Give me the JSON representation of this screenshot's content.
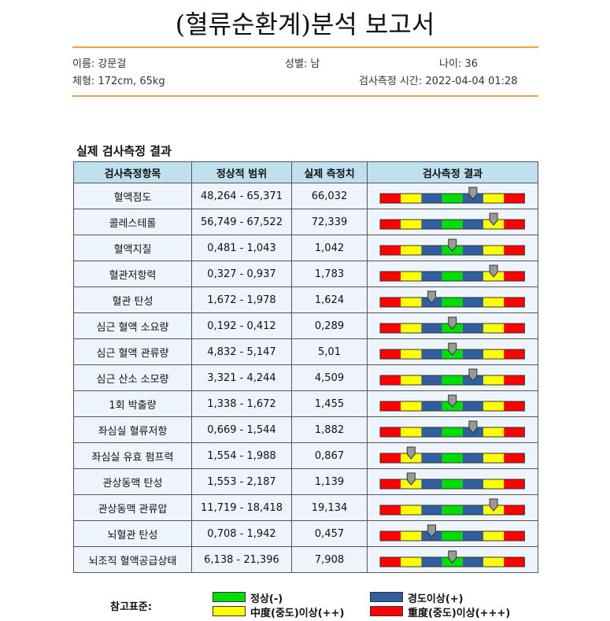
{
  "header": {
    "title": "(혈류순환계)분석 보고서"
  },
  "info": {
    "name": "이름: 강문걸",
    "sex": "성별: 남",
    "age": "나이: 36",
    "body": "체형: 172cm, 65kg",
    "time": "검사측정 시간: 2022-04-04 01:28"
  },
  "table": {
    "title": "실제 검사측정 결과",
    "columns": [
      "검사측정항목",
      "정상적 범위",
      "실제 측정치",
      "검사측정 결과"
    ],
    "rows": [
      {
        "item": "혈액점도",
        "range": "48,264 - 65,371",
        "value": "66,032",
        "level": 4
      },
      {
        "item": "콜레스테롤",
        "range": "56,749 - 67,522",
        "value": "72,339",
        "level": 5
      },
      {
        "item": "혈액지질",
        "range": "0,481 - 1,043",
        "value": "1,042",
        "level": 3
      },
      {
        "item": "혈관저항력",
        "range": "0,327 - 0,937",
        "value": "1,783",
        "level": 5
      },
      {
        "item": "혈관 탄성",
        "range": "1,672 - 1,978",
        "value": "1,624",
        "level": 2
      },
      {
        "item": "심근 혈액 소요량",
        "range": "0,192 - 0,412",
        "value": "0,289",
        "level": 3
      },
      {
        "item": "심근 혈액 관류량",
        "range": "4,832 - 5,147",
        "value": "5,01",
        "level": 3
      },
      {
        "item": "심근 산소 소모량",
        "range": "3,321 - 4,244",
        "value": "4,509",
        "level": 4
      },
      {
        "item": "1회 박출량",
        "range": "1,338 - 1,672",
        "value": "1,455",
        "level": 3
      },
      {
        "item": "좌심실 혈류저항",
        "range": "0,669 - 1,544",
        "value": "1,882",
        "level": 4
      },
      {
        "item": "좌심실 유효 펌프력",
        "range": "1,554 - 1,988",
        "value": "0,867",
        "level": 1
      },
      {
        "item": "관상동맥 탄성",
        "range": "1,553 - 2,187",
        "value": "1,139",
        "level": 1
      },
      {
        "item": "관상동맥 관류압",
        "range": "11,719 - 18,418",
        "value": "19,134",
        "level": 5
      },
      {
        "item": "뇌혈관 탄성",
        "range": "0,708 - 1,942",
        "value": "0,457",
        "level": 2
      },
      {
        "item": "뇌조직 혈액공급상태",
        "range": "6,138 - 21,396",
        "value": "7,908",
        "level": 3
      }
    ]
  },
  "legend": {
    "label": "참고표준:",
    "items": [
      {
        "label": "정상(-)",
        "color": "#00dd00"
      },
      {
        "label": "경도이상(+)",
        "color": "#2f5f9f"
      },
      {
        "label": "中度(중도)이상(++)",
        "color": "#ffff00"
      },
      {
        "label": "重度(중도)이상(+++)",
        "color": "#ff0000"
      }
    ]
  }
}
